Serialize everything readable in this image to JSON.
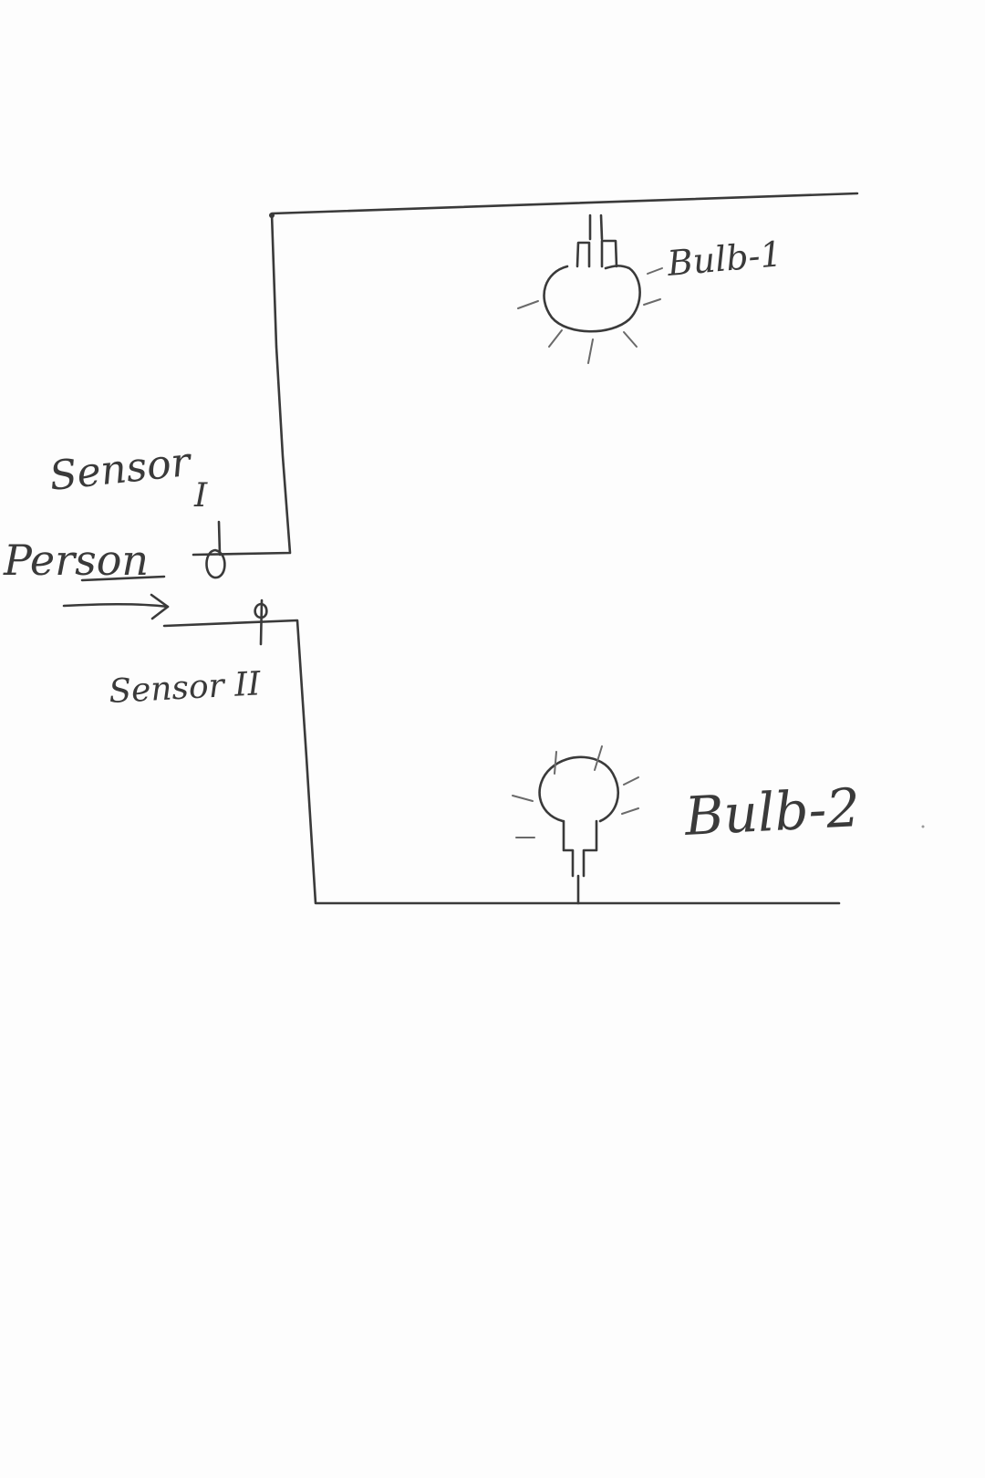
{
  "diagram": {
    "labels": {
      "sensor_1_word": "Sensor",
      "sensor_1_numeral": "I",
      "person": "Person",
      "sensor_2": "Sensor II",
      "bulb_1": "Bulb-1",
      "bulb_2": "Bulb-2"
    },
    "ink_color": "#3a3a3a",
    "background_color": "#fdfdfd"
  }
}
